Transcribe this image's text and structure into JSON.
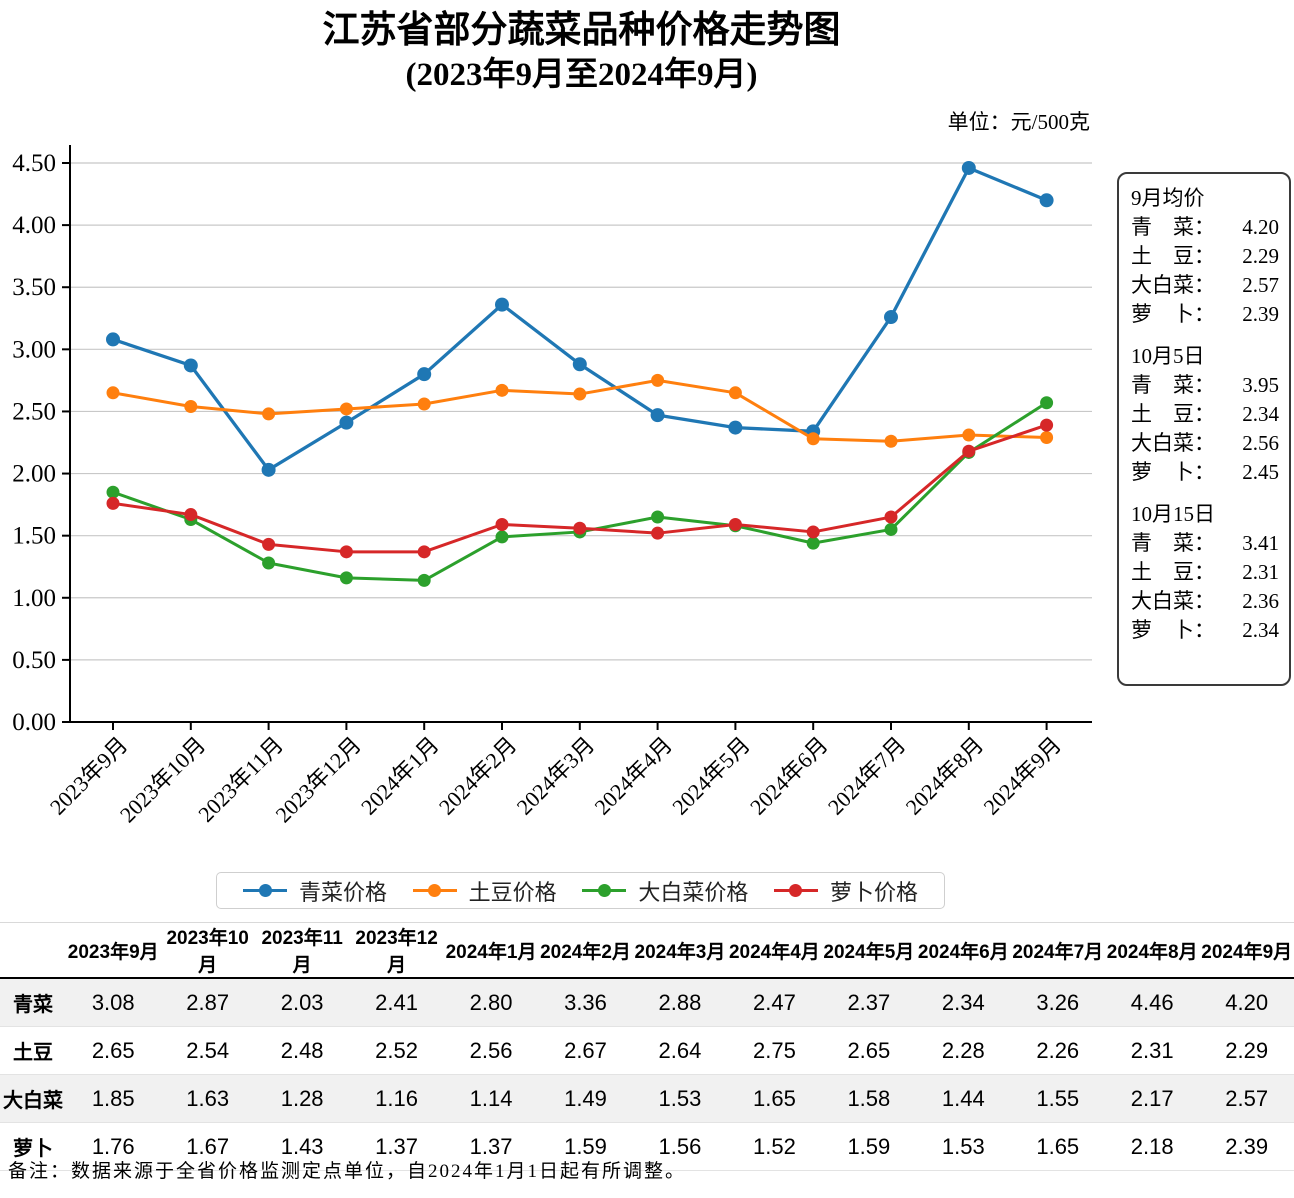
{
  "title": {
    "line1": "江苏省部分蔬菜品种价格走势图",
    "line2": "(2023年9月至2024年9月)"
  },
  "unit_label": "单位：元/500克",
  "chart_data": {
    "type": "line",
    "title": "江苏省部分蔬菜品种价格走势图(2023年9月至2024年9月)",
    "ylabel": "元/500克",
    "xlabel": "",
    "ylim": [
      0,
      4.5
    ],
    "ytick_step": 0.5,
    "grid": true,
    "legend_position": "bottom",
    "categories": [
      "2023年9月",
      "2023年10月",
      "2023年11月",
      "2023年12月",
      "2024年1月",
      "2024年2月",
      "2024年3月",
      "2024年4月",
      "2024年5月",
      "2024年6月",
      "2024年7月",
      "2024年8月",
      "2024年9月"
    ],
    "series": [
      {
        "name": "青菜价格",
        "color": "#1f77b4",
        "values": [
          3.08,
          2.87,
          2.03,
          2.41,
          2.8,
          3.36,
          2.88,
          2.47,
          2.37,
          2.34,
          3.26,
          4.46,
          4.2
        ]
      },
      {
        "name": "土豆价格",
        "color": "#ff7f0e",
        "values": [
          2.65,
          2.54,
          2.48,
          2.52,
          2.56,
          2.67,
          2.64,
          2.75,
          2.65,
          2.28,
          2.26,
          2.31,
          2.29
        ]
      },
      {
        "name": "大白菜价格",
        "color": "#2ca02c",
        "values": [
          1.85,
          1.63,
          1.28,
          1.16,
          1.14,
          1.49,
          1.53,
          1.65,
          1.58,
          1.44,
          1.55,
          2.17,
          2.57
        ]
      },
      {
        "name": "萝卜价格",
        "color": "#d62728",
        "values": [
          1.76,
          1.67,
          1.43,
          1.37,
          1.37,
          1.59,
          1.56,
          1.52,
          1.59,
          1.53,
          1.65,
          2.18,
          2.39
        ]
      }
    ]
  },
  "side_panel": {
    "sections": [
      {
        "heading": "9月均价",
        "rows": [
          {
            "label": "青　菜：",
            "value": "4.20"
          },
          {
            "label": "土　豆：",
            "value": "2.29"
          },
          {
            "label": "大白菜：",
            "value": "2.57"
          },
          {
            "label": "萝　卜：",
            "value": "2.39"
          }
        ]
      },
      {
        "heading": "10月5日",
        "rows": [
          {
            "label": "青　菜：",
            "value": "3.95"
          },
          {
            "label": "土　豆：",
            "value": "2.34"
          },
          {
            "label": "大白菜：",
            "value": "2.56"
          },
          {
            "label": "萝　卜：",
            "value": "2.45"
          }
        ]
      },
      {
        "heading": "10月15日",
        "rows": [
          {
            "label": "青　菜：",
            "value": "3.41"
          },
          {
            "label": "土　豆：",
            "value": "2.31"
          },
          {
            "label": "大白菜：",
            "value": "2.36"
          },
          {
            "label": "萝　卜：",
            "value": "2.34"
          }
        ]
      }
    ]
  },
  "legend": {
    "items": [
      {
        "label": "青菜价格",
        "color": "#1f77b4"
      },
      {
        "label": "土豆价格",
        "color": "#ff7f0e"
      },
      {
        "label": "大白菜价格",
        "color": "#2ca02c"
      },
      {
        "label": "萝卜价格",
        "color": "#d62728"
      }
    ]
  },
  "table": {
    "corner_header": "",
    "columns": [
      "2023年9月",
      "2023年10月",
      "2023年11月",
      "2023年12月",
      "2024年1月",
      "2024年2月",
      "2024年3月",
      "2024年4月",
      "2024年5月",
      "2024年6月",
      "2024年7月",
      "2024年8月",
      "2024年9月"
    ],
    "rows": [
      {
        "label": "青菜",
        "striped": true,
        "values": [
          "3.08",
          "2.87",
          "2.03",
          "2.41",
          "2.80",
          "3.36",
          "2.88",
          "2.47",
          "2.37",
          "2.34",
          "3.26",
          "4.46",
          "4.20"
        ]
      },
      {
        "label": "土豆",
        "striped": false,
        "values": [
          "2.65",
          "2.54",
          "2.48",
          "2.52",
          "2.56",
          "2.67",
          "2.64",
          "2.75",
          "2.65",
          "2.28",
          "2.26",
          "2.31",
          "2.29"
        ]
      },
      {
        "label": "大白菜",
        "striped": true,
        "values": [
          "1.85",
          "1.63",
          "1.28",
          "1.16",
          "1.14",
          "1.49",
          "1.53",
          "1.65",
          "1.58",
          "1.44",
          "1.55",
          "2.17",
          "2.57"
        ]
      },
      {
        "label": "萝卜",
        "striped": false,
        "values": [
          "1.76",
          "1.67",
          "1.43",
          "1.37",
          "1.37",
          "1.59",
          "1.56",
          "1.52",
          "1.59",
          "1.53",
          "1.65",
          "2.18",
          "2.39"
        ]
      }
    ]
  },
  "footnote": "备注：数据来源于全省价格监测定点单位，自2024年1月1日起有所调整。",
  "colors": {
    "grid": "#c8c8c8",
    "axis": "#000000",
    "stripe": "#f1f1f1"
  }
}
